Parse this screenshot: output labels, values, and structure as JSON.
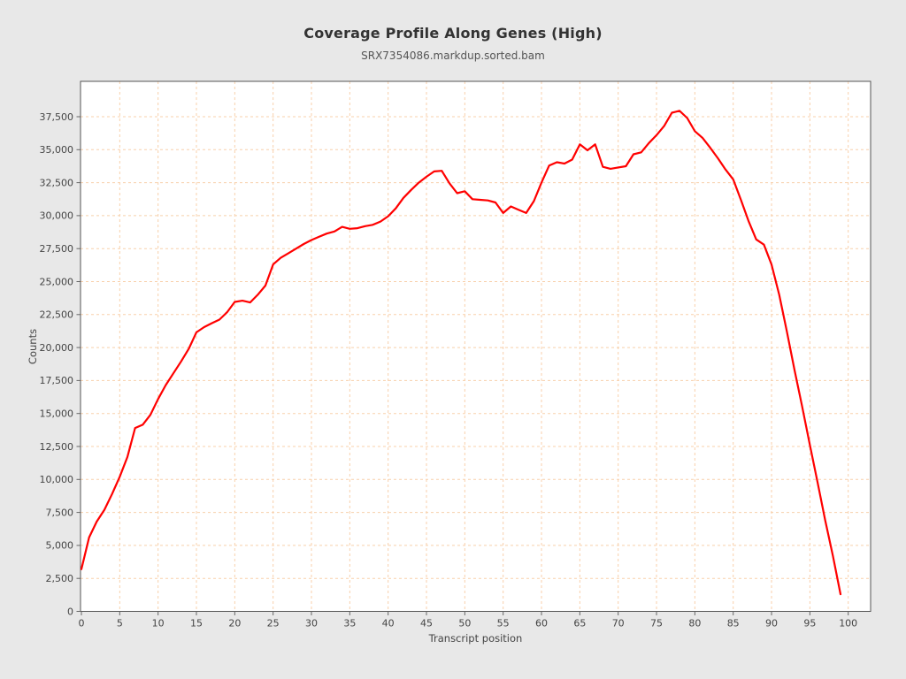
{
  "header": {
    "title": "Coverage Profile Along Genes (High)",
    "subtitle": "SRX7354086.markdup.sorted.bam"
  },
  "chart_data": {
    "type": "line",
    "title": "Coverage Profile Along Genes (High)",
    "subtitle": "SRX7354086.markdup.sorted.bam",
    "xlabel": "Transcript position",
    "ylabel": "Counts",
    "series": [
      {
        "name": "coverage",
        "x": [
          0,
          1,
          2,
          3,
          4,
          5,
          6,
          7,
          8,
          9,
          10,
          11,
          12,
          13,
          14,
          15,
          16,
          17,
          18,
          19,
          20,
          21,
          22,
          23,
          24,
          25,
          26,
          27,
          28,
          29,
          30,
          31,
          32,
          33,
          34,
          35,
          36,
          37,
          38,
          39,
          40,
          41,
          42,
          43,
          44,
          45,
          46,
          47,
          48,
          49,
          50,
          51,
          52,
          53,
          54,
          55,
          56,
          57,
          58,
          59,
          60,
          61,
          62,
          63,
          64,
          65,
          66,
          67,
          68,
          69,
          70,
          71,
          72,
          73,
          74,
          75,
          76,
          77,
          78,
          79,
          80,
          81,
          82,
          83,
          84,
          85,
          86,
          87,
          88,
          89,
          90,
          91,
          92,
          93,
          94,
          95,
          96,
          97,
          98,
          99
        ],
        "values": [
          3200,
          5600,
          6800,
          7700,
          8900,
          10200,
          11700,
          13900,
          14150,
          14900,
          16100,
          17150,
          18050,
          18950,
          19900,
          21150,
          21550,
          21840,
          22120,
          22680,
          23460,
          23550,
          23420,
          24000,
          24700,
          26300,
          26800,
          27150,
          27500,
          27850,
          28150,
          28400,
          28640,
          28800,
          29150,
          29000,
          29050,
          29200,
          29300,
          29550,
          29950,
          30550,
          31350,
          31950,
          32500,
          32950,
          33350,
          33400,
          32450,
          31700,
          31850,
          31250,
          31200,
          31150,
          31000,
          30200,
          30700,
          30450,
          30200,
          31100,
          32500,
          33800,
          34050,
          33950,
          34250,
          35400,
          34950,
          35400,
          33700,
          33550,
          33650,
          33750,
          34650,
          34800,
          35500,
          36100,
          36800,
          37800,
          37950,
          37400,
          36400,
          35900,
          35150,
          34350,
          33500,
          32750,
          31200,
          29600,
          28200,
          27800,
          26300,
          24000,
          21200,
          18300,
          15500,
          12600,
          9800,
          6900,
          4200,
          1300
        ]
      }
    ],
    "xlim": [
      0,
      103
    ],
    "ylim": [
      0,
      40000
    ],
    "x_ticks": [
      0,
      5,
      10,
      15,
      20,
      25,
      30,
      35,
      40,
      45,
      50,
      55,
      60,
      65,
      70,
      75,
      80,
      85,
      90,
      95,
      100
    ],
    "y_ticks": [
      0,
      2500,
      5000,
      7500,
      10000,
      12500,
      15000,
      17500,
      20000,
      22500,
      25000,
      27500,
      30000,
      32500,
      35000,
      37500
    ],
    "grid": true,
    "grid_style": "dashed",
    "legend": false,
    "colors": {
      "line": "#ff0000",
      "grid": "#f8d0ab",
      "plot_bg": "#ffffff",
      "fig_bg": "#e8e8e8",
      "border": "#555555",
      "tick": "#666666",
      "tick_label": "#444444",
      "title": "#333333",
      "subtitle": "#555555"
    }
  }
}
